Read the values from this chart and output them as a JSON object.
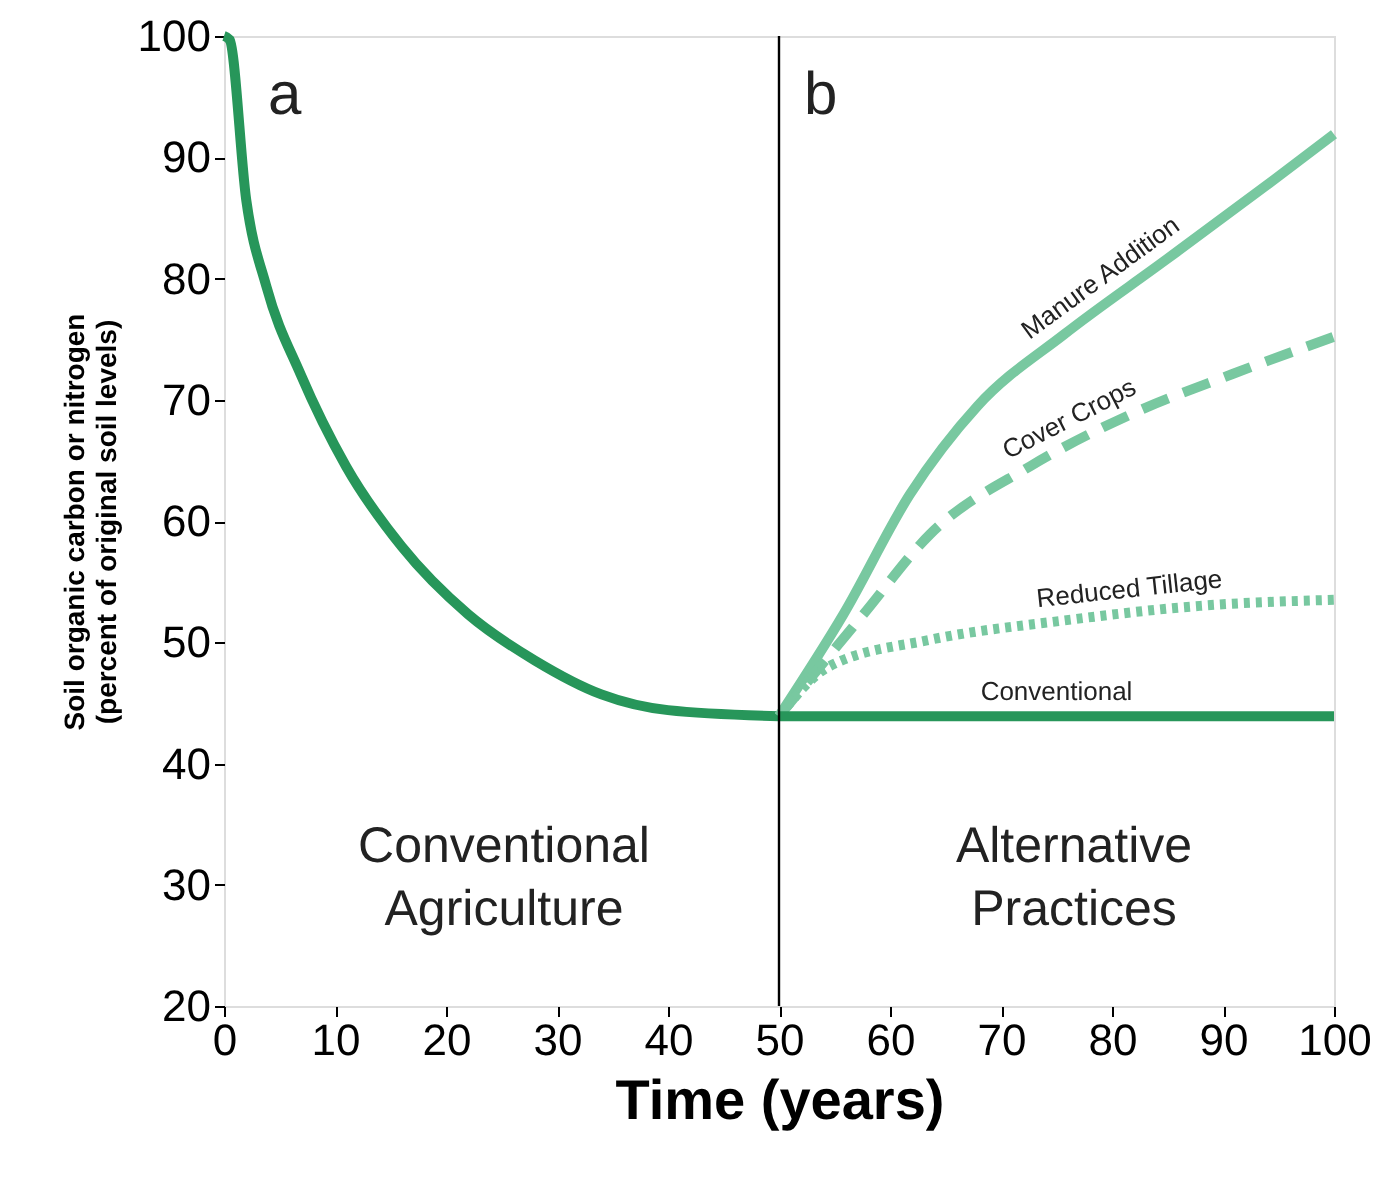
{
  "chart_data": {
    "type": "line",
    "xlabel": "Time (years)",
    "ylabel": "Soil organic carbon or nitrogen\n(percent of original soil levels)",
    "xlim": [
      0,
      100
    ],
    "ylim": [
      20,
      100
    ],
    "xticks": [
      0,
      10,
      20,
      30,
      40,
      50,
      60,
      70,
      80,
      90,
      100
    ],
    "yticks": [
      20,
      30,
      40,
      50,
      60,
      70,
      80,
      90,
      100
    ],
    "grid": false,
    "series": [
      {
        "color": "#27965a",
        "line_style": "solid",
        "x": [
          0,
          0.5,
          2,
          3.8,
          6.9,
          11,
          16,
          22,
          28,
          34,
          40,
          50
        ],
        "values": [
          100,
          99.7,
          86.5,
          79.4,
          72.1,
          64.5,
          57.9,
          52.3,
          48.5,
          45.7,
          44.4,
          43.9
        ]
      },
      {
        "name": "Manure Addition",
        "color": "#78c8a0",
        "line_style": "solid",
        "x": [
          50,
          55.8,
          61.8,
          67.9,
          75.7,
          84.8,
          93.8,
          100
        ],
        "values": [
          43.9,
          52.3,
          62.2,
          69.5,
          75.4,
          81.5,
          87.6,
          91.9
        ]
      },
      {
        "name": "Cover Crops",
        "color": "#78c8a0",
        "line_style": "dashed",
        "x": [
          50,
          57.6,
          63.6,
          72.6,
          81.7,
          90.8,
          100
        ],
        "values": [
          43.9,
          52.3,
          58.9,
          64.5,
          68.8,
          72.1,
          75.2
        ]
      },
      {
        "name": "Reduced Tillage",
        "color": "#78c8a0",
        "line_style": "dotted",
        "x": [
          50,
          54.5,
          63.6,
          75.7,
          87.9,
          100
        ],
        "values": [
          43.9,
          48,
          50.2,
          51.8,
          53,
          53.5
        ]
      },
      {
        "name": "Conventional",
        "color": "#27965a",
        "line_style": "solid",
        "x": [
          50,
          100
        ],
        "values": [
          43.9,
          43.9
        ]
      }
    ],
    "ref_lines": [
      {
        "axis": "x",
        "value": 50,
        "color": "#000000"
      }
    ],
    "annotations": [
      "a",
      "b",
      "Conventional\nAgriculture",
      "Alternative\nPractices"
    ]
  }
}
